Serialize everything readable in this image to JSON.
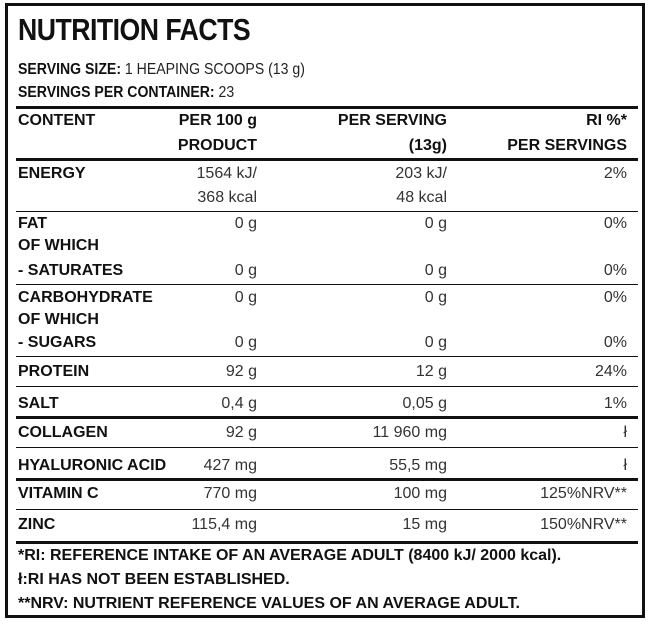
{
  "title": "NUTRITION FACTS",
  "serving_size": {
    "label": "SERVING SIZE:",
    "value": "1 HEAPING SCOOPS (13 g)"
  },
  "servings_per_container": {
    "label": "SERVINGS PER CONTAINER:",
    "value": "23"
  },
  "header": {
    "content": "CONTENT",
    "per100_l1": "PER 100 g",
    "per100_l2": "PRODUCT",
    "perserv_l1": "PER SERVING",
    "perserv_l2": "(13g)",
    "ri_l1": "RI %*",
    "ri_l2": "PER SERVINGS"
  },
  "rows": {
    "energy": {
      "label": "ENERGY",
      "p100_l1": "1564 kJ/",
      "p100_l2": "368 kcal",
      "ps_l1": "203 kJ/",
      "ps_l2": "48 kcal",
      "ri": "2%"
    },
    "fat": {
      "label_l1": "FAT",
      "label_l2": "OF WHICH",
      "label_l3": "- SATURATES",
      "p100": "0 g",
      "ps": "0 g",
      "ri": "0%",
      "sat_p100": "0 g",
      "sat_ps": "0 g",
      "sat_ri": "0%"
    },
    "carb": {
      "label_l1": "CARBOHYDRATE",
      "label_l2": "OF WHICH",
      "label_l3": "- SUGARS",
      "p100": "0 g",
      "ps": "0 g",
      "ri": "0%",
      "sug_p100": "0 g",
      "sug_ps": "0 g",
      "sug_ri": "0%"
    },
    "protein": {
      "label": "PROTEIN",
      "p100": "92 g",
      "ps": "12 g",
      "ri": "24%"
    },
    "salt": {
      "label": "SALT",
      "p100": "0,4 g",
      "ps": "0,05 g",
      "ri": "1%"
    },
    "collagen": {
      "label": "COLLAGEN",
      "p100": "92 g",
      "ps": "11 960  mg",
      "ri": "ł"
    },
    "hyaluronic": {
      "label": "HYALURONIC ACID",
      "p100": "427 mg",
      "ps": "55,5 mg",
      "ri": "ł"
    },
    "vitc": {
      "label": "VITAMIN C",
      "p100": "770 mg",
      "ps": "100 mg",
      "ri": "125%NRV**"
    },
    "zinc": {
      "label": "ZINC",
      "p100": "115,4 mg",
      "ps": "15 mg",
      "ri": "150%NRV**"
    }
  },
  "footnotes": {
    "ri": "*RI: REFERENCE INTAKE OF AN AVERAGE ADULT (8400 kJ/ 2000 kcal).",
    "not_established": "ł:RI HAS NOT BEEN ESTABLISHED.",
    "nrv": "**NRV: NUTRIENT REFERENCE VALUES OF AN AVERAGE ADULT."
  }
}
